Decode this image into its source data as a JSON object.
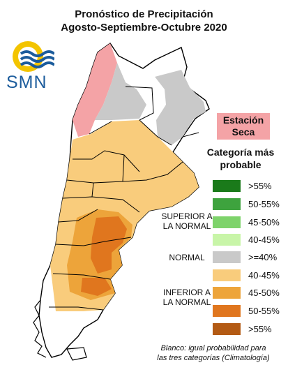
{
  "title": {
    "line1": "Pronóstico de Precipitación",
    "line2": "Agosto-Septiembre-Octubre 2020"
  },
  "logo": {
    "text": "SMN",
    "icon": "smn-wave-logo-icon"
  },
  "dry_season_label": {
    "line1": "Estación",
    "line2": "Seca"
  },
  "legend": {
    "title_line1": "Categoría más",
    "title_line2": "probable",
    "groups": [
      {
        "line1": "SUPERIOR A",
        "line2": "LA NORMAL"
      },
      {
        "line1": "NORMAL",
        "line2": ""
      },
      {
        "line1": "INFERIOR A",
        "line2": "LA NORMAL"
      }
    ],
    "items": [
      {
        "label": ">55%",
        "color": "#1a7a1a"
      },
      {
        "label": "50-55%",
        "color": "#3ea33e"
      },
      {
        "label": "45-50%",
        "color": "#7ed36b"
      },
      {
        "label": "40-45%",
        "color": "#c8f5a8"
      },
      {
        "label": ">=40%",
        "color": "#c9c9c9"
      },
      {
        "label": "40-45%",
        "color": "#f9cc7c"
      },
      {
        "label": "45-50%",
        "color": "#eda43a"
      },
      {
        "label": "50-55%",
        "color": "#e0761e"
      },
      {
        "label": ">55%",
        "color": "#b35a14"
      }
    ]
  },
  "note": {
    "line1": "Blanco: igual probabilidad para",
    "line2": "las tres categorías (Climatología)"
  },
  "map_colors": {
    "dry": "#f4a3a6",
    "normal": "#c9c9c9",
    "below_40_45": "#f9cc7c",
    "below_45_50": "#eda43a",
    "below_50_55": "#e0761e",
    "below_55": "#b35a14"
  }
}
